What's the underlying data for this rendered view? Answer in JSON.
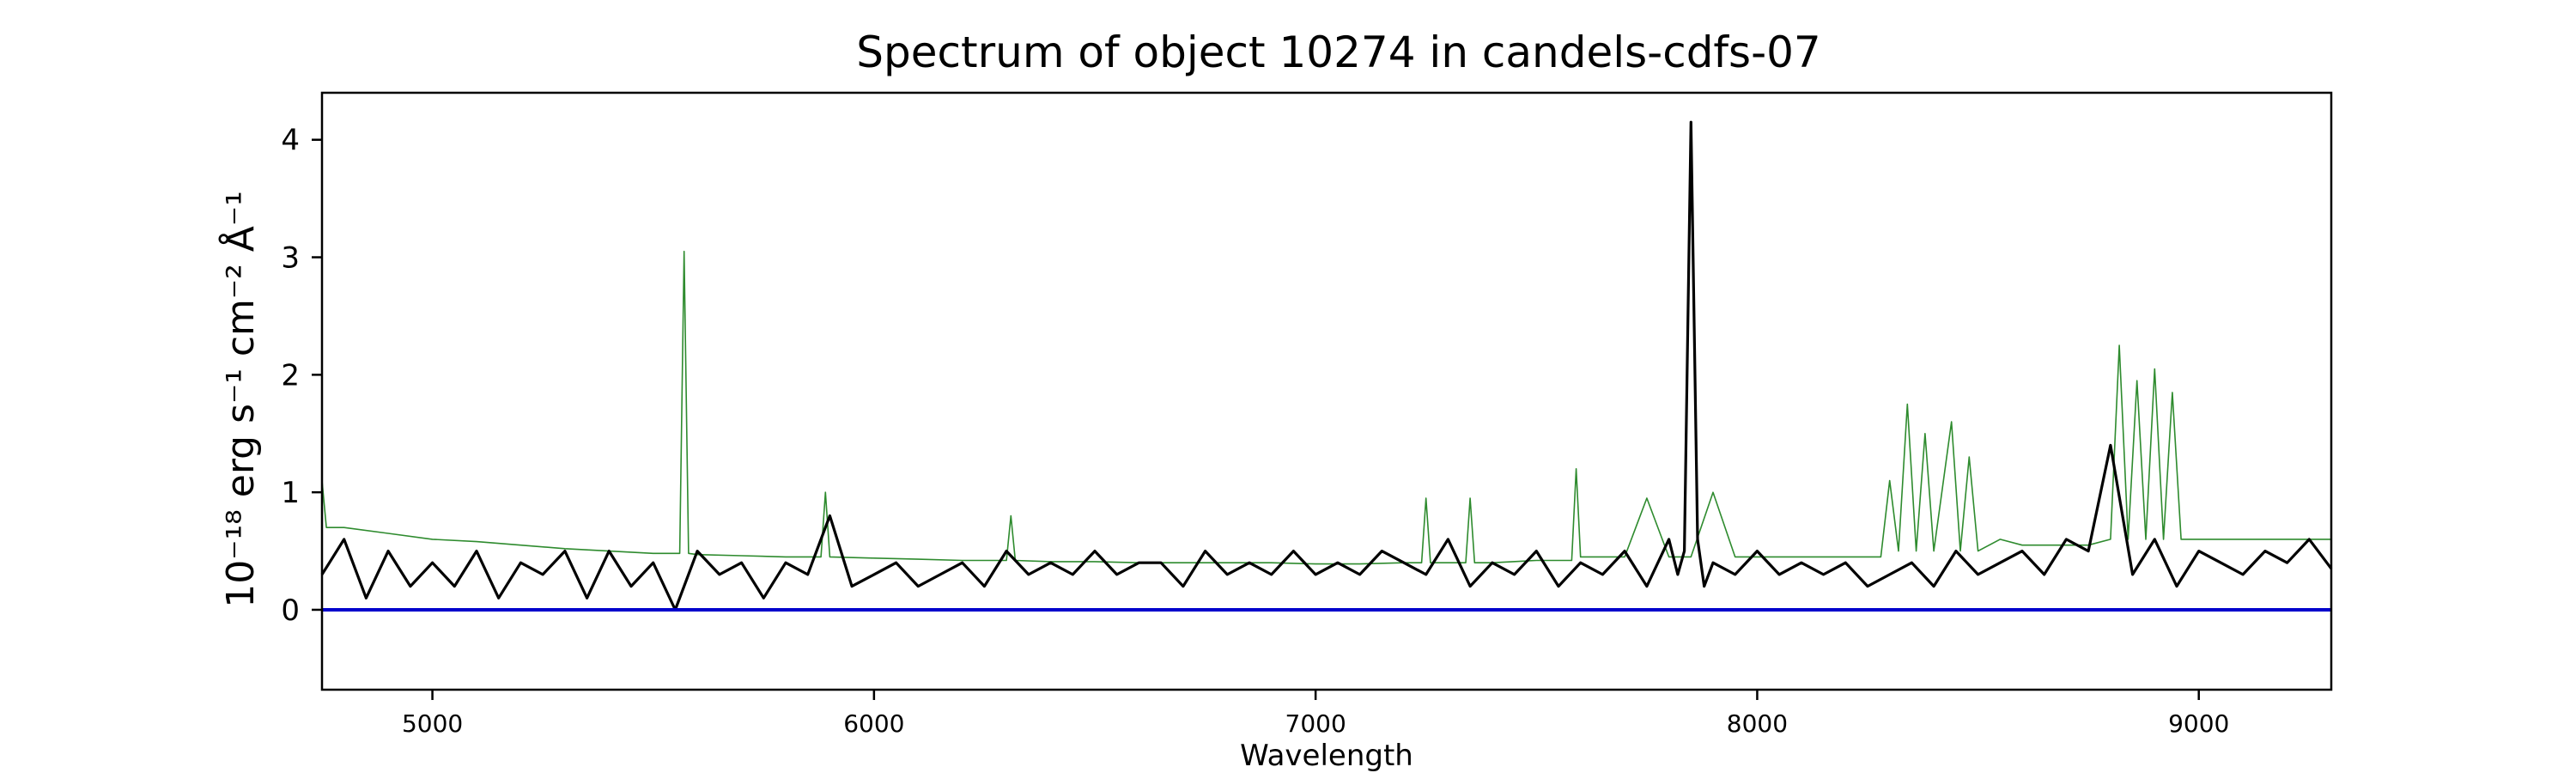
{
  "chart_data": {
    "type": "line",
    "title": "Spectrum of object 10274 in candels-cdfs-07",
    "xlabel": "Wavelength",
    "ylabel": "10⁻¹⁸ erg s⁻¹ cm⁻² Å⁻¹",
    "xlim": [
      4750,
      9300
    ],
    "ylim": [
      -0.68,
      4.4
    ],
    "xticks": [
      5000,
      6000,
      7000,
      8000,
      9000
    ],
    "xtick_labels": [
      "5000",
      "6000",
      "7000",
      "8000",
      "9000"
    ],
    "yticks": [
      0,
      1,
      2,
      3,
      4
    ],
    "ytick_labels": [
      "0",
      "1",
      "2",
      "3",
      "4"
    ],
    "grid": false,
    "colors": {
      "flux": "#000000",
      "error": "#2e8b2e",
      "zero_line": "#0000cc"
    },
    "series": [
      {
        "x": [
          4750,
          4800,
          4850,
          4900,
          4950,
          5000,
          5050,
          5100,
          5150,
          5200,
          5250,
          5300,
          5350,
          5400,
          5450,
          5500,
          5550,
          5600,
          5650,
          5700,
          5750,
          5800,
          5850,
          5900,
          5950,
          6000,
          6050,
          6100,
          6150,
          6200,
          6250,
          6300,
          6350,
          6400,
          6450,
          6500,
          6550,
          6600,
          6650,
          6700,
          6750,
          6800,
          6850,
          6900,
          6950,
          7000,
          7050,
          7100,
          7150,
          7200,
          7250,
          7300,
          7350,
          7400,
          7450,
          7500,
          7550,
          7600,
          7650,
          7700,
          7750,
          7800,
          7820,
          7835,
          7850,
          7865,
          7880,
          7900,
          7950,
          8000,
          8050,
          8100,
          8150,
          8200,
          8250,
          8300,
          8350,
          8400,
          8450,
          8500,
          8550,
          8600,
          8650,
          8700,
          8750,
          8800,
          8850,
          8900,
          8950,
          9000,
          9050,
          9100,
          9150,
          9200,
          9250,
          9300
        ],
        "y": [
          0.3,
          0.6,
          0.1,
          0.5,
          0.2,
          0.4,
          0.2,
          0.5,
          0.1,
          0.4,
          0.3,
          0.5,
          0.1,
          0.5,
          0.2,
          0.4,
          0.0,
          0.5,
          0.3,
          0.4,
          0.1,
          0.4,
          0.3,
          0.8,
          0.2,
          0.3,
          0.4,
          0.2,
          0.3,
          0.4,
          0.2,
          0.5,
          0.3,
          0.4,
          0.3,
          0.5,
          0.3,
          0.4,
          0.4,
          0.2,
          0.5,
          0.3,
          0.4,
          0.3,
          0.5,
          0.3,
          0.4,
          0.3,
          0.5,
          0.4,
          0.3,
          0.6,
          0.2,
          0.4,
          0.3,
          0.5,
          0.2,
          0.4,
          0.3,
          0.5,
          0.2,
          0.6,
          0.3,
          0.5,
          4.15,
          0.6,
          0.2,
          0.4,
          0.3,
          0.5,
          0.3,
          0.4,
          0.3,
          0.4,
          0.2,
          0.3,
          0.4,
          0.2,
          0.5,
          0.3,
          0.4,
          0.5,
          0.3,
          0.6,
          0.5,
          1.4,
          0.3,
          0.6,
          0.2,
          0.5,
          0.4,
          0.3,
          0.5,
          0.4,
          0.6,
          0.35
        ]
      },
      {
        "x": [
          4750,
          4760,
          4800,
          4900,
          5000,
          5100,
          5200,
          5300,
          5400,
          5500,
          5560,
          5570,
          5580,
          5600,
          5700,
          5800,
          5880,
          5890,
          5900,
          6000,
          6100,
          6200,
          6300,
          6310,
          6320,
          6400,
          6500,
          6600,
          6700,
          6800,
          6900,
          7000,
          7100,
          7200,
          7240,
          7250,
          7260,
          7300,
          7340,
          7350,
          7360,
          7400,
          7500,
          7580,
          7590,
          7600,
          7650,
          7700,
          7750,
          7800,
          7850,
          7900,
          7950,
          8000,
          8050,
          8100,
          8200,
          8280,
          8300,
          8320,
          8340,
          8360,
          8380,
          8400,
          8440,
          8460,
          8480,
          8500,
          8550,
          8600,
          8700,
          8750,
          8800,
          8820,
          8840,
          8860,
          8880,
          8900,
          8920,
          8940,
          8960,
          9000,
          9100,
          9200,
          9300
        ],
        "y": [
          1.1,
          0.7,
          0.7,
          0.65,
          0.6,
          0.58,
          0.55,
          0.52,
          0.5,
          0.48,
          0.48,
          3.05,
          0.48,
          0.47,
          0.46,
          0.45,
          0.45,
          1.0,
          0.45,
          0.44,
          0.43,
          0.42,
          0.42,
          0.8,
          0.42,
          0.41,
          0.41,
          0.4,
          0.4,
          0.4,
          0.4,
          0.39,
          0.39,
          0.4,
          0.4,
          0.95,
          0.4,
          0.4,
          0.4,
          0.95,
          0.4,
          0.4,
          0.42,
          0.42,
          1.2,
          0.45,
          0.45,
          0.45,
          0.95,
          0.45,
          0.45,
          1.0,
          0.45,
          0.45,
          0.45,
          0.45,
          0.45,
          0.45,
          1.1,
          0.5,
          1.75,
          0.5,
          1.5,
          0.5,
          1.6,
          0.5,
          1.3,
          0.5,
          0.6,
          0.55,
          0.55,
          0.55,
          0.6,
          2.25,
          0.6,
          1.95,
          0.6,
          2.05,
          0.6,
          1.85,
          0.6,
          0.6,
          0.6,
          0.6,
          0.6
        ]
      },
      {
        "x": [
          4750,
          9300
        ],
        "y": [
          0,
          0
        ]
      }
    ]
  }
}
